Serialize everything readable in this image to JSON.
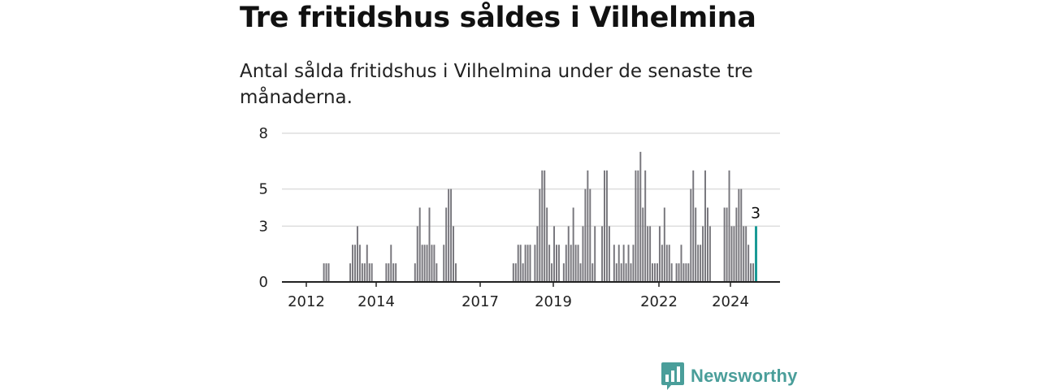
{
  "header": {
    "title": "Tre fritidshus såldes i Vilhelmina",
    "subtitle": "Antal sålda fritidshus i Vilhelmina under de senaste tre månaderna."
  },
  "brand": {
    "name": "Newsworthy",
    "icon": "newsworthy-chart-bubble-icon",
    "color": "#4a9e9a"
  },
  "colors": {
    "bar": "#77767c",
    "highlight": "#1a9a96",
    "grid": "#dddddd",
    "axis": "#222222"
  },
  "chart_data": {
    "type": "bar",
    "title": "Tre fritidshus såldes i Vilhelmina",
    "subtitle": "Antal sålda fritidshus i Vilhelmina under de senaste tre månaderna.",
    "xlabel": "",
    "ylabel": "",
    "ylim": [
      0,
      8
    ],
    "yticks": [
      0,
      3,
      5,
      8
    ],
    "xticks": [
      "2012",
      "2014",
      "2017",
      "2019",
      "2022",
      "2024"
    ],
    "grid": true,
    "highlight_label": "3",
    "values": [
      0,
      0,
      0,
      0,
      0,
      0,
      0,
      0,
      1,
      1,
      1,
      0,
      0,
      0,
      0,
      0,
      0,
      0,
      0,
      1,
      2,
      2,
      3,
      2,
      1,
      1,
      2,
      1,
      1,
      0,
      0,
      0,
      0,
      0,
      1,
      1,
      2,
      1,
      1,
      0,
      0,
      0,
      0,
      0,
      0,
      0,
      1,
      3,
      4,
      2,
      2,
      2,
      4,
      2,
      2,
      1,
      0,
      0,
      2,
      4,
      5,
      5,
      3,
      1,
      0,
      0,
      0,
      0,
      0,
      0,
      0,
      0,
      0,
      0,
      0,
      0,
      0,
      0,
      0,
      0,
      0,
      0,
      0,
      0,
      0,
      0,
      0,
      1,
      1,
      2,
      2,
      1,
      2,
      2,
      2,
      0,
      2,
      3,
      5,
      6,
      6,
      4,
      2,
      1,
      3,
      2,
      2,
      0,
      1,
      2,
      3,
      2,
      4,
      2,
      2,
      1,
      3,
      5,
      6,
      5,
      1,
      3,
      0,
      0,
      3,
      6,
      6,
      3,
      0,
      2,
      1,
      2,
      1,
      2,
      1,
      2,
      1,
      2,
      6,
      6,
      7,
      4,
      6,
      3,
      3,
      1,
      1,
      1,
      3,
      2,
      4,
      2,
      2,
      1,
      0,
      1,
      1,
      2,
      1,
      1,
      1,
      5,
      6,
      4,
      2,
      2,
      3,
      6,
      4,
      3,
      0,
      0,
      0,
      0,
      0,
      4,
      4,
      6,
      3,
      3,
      4,
      5,
      5,
      3,
      3,
      2,
      1,
      1,
      3
    ]
  }
}
